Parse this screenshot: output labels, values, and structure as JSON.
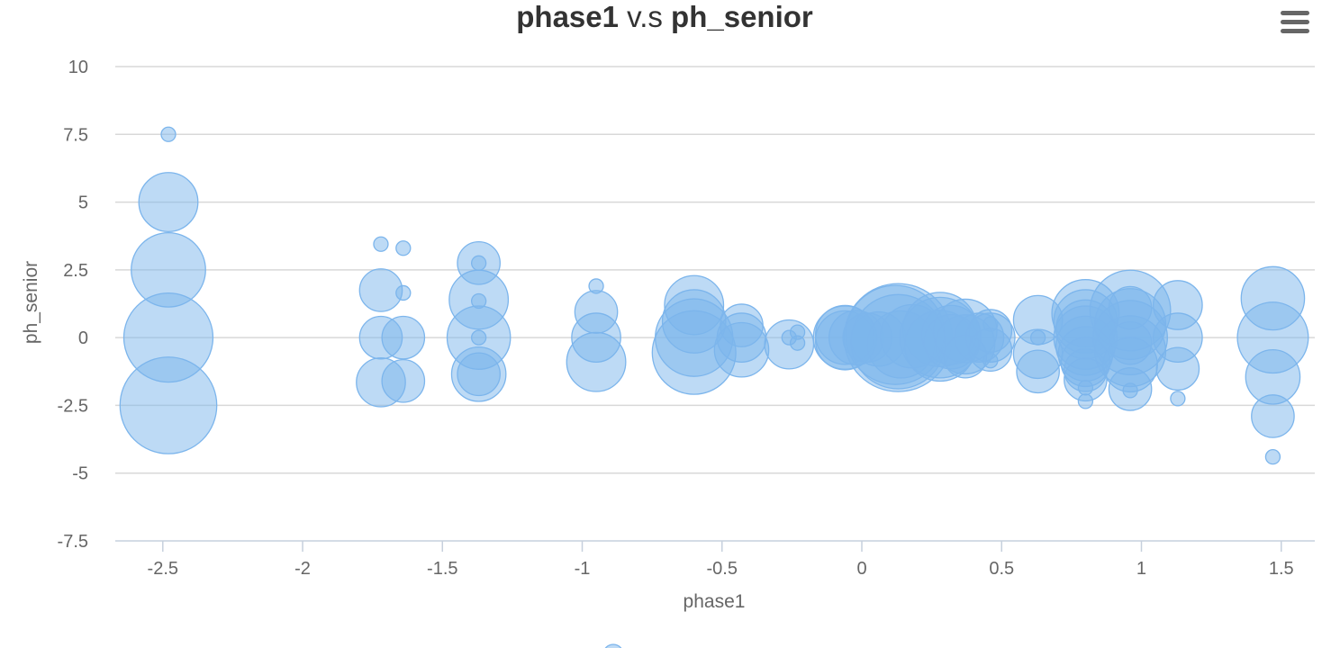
{
  "chart_data": {
    "type": "bubble",
    "title": {
      "part1": "phase1",
      "connector": " v.s ",
      "part2": "ph_senior"
    },
    "xlabel": "phase1",
    "ylabel": "ph_senior",
    "xlim": [
      -2.67,
      1.62
    ],
    "ylim": [
      -7.5,
      10
    ],
    "x_ticks": [
      {
        "value": -2.5,
        "label": "-2.5"
      },
      {
        "value": -2,
        "label": "-2"
      },
      {
        "value": -1.5,
        "label": "-1.5"
      },
      {
        "value": -1,
        "label": "-1"
      },
      {
        "value": -0.5,
        "label": "-0.5"
      },
      {
        "value": 0,
        "label": "0"
      },
      {
        "value": 0.5,
        "label": "0.5"
      },
      {
        "value": 1,
        "label": "1"
      },
      {
        "value": 1.5,
        "label": "1.5"
      }
    ],
    "y_ticks": [
      {
        "value": 10,
        "label": "10"
      },
      {
        "value": 7.5,
        "label": "7.5"
      },
      {
        "value": 5,
        "label": "5"
      },
      {
        "value": 2.5,
        "label": "2.5"
      },
      {
        "value": 0,
        "label": "0"
      },
      {
        "value": -2.5,
        "label": "-2.5"
      },
      {
        "value": -5,
        "label": "-5"
      },
      {
        "value": -7.5,
        "label": "-7.5"
      }
    ],
    "grid": true,
    "legend": {
      "position": "bottom-center"
    },
    "colors": {
      "bubble": "#7cb5ec"
    },
    "points": [
      {
        "x": -2.48,
        "y": 7.5,
        "z": 1
      },
      {
        "x": -2.48,
        "y": 5.0,
        "z": 5
      },
      {
        "x": -2.48,
        "y": 2.5,
        "z": 9
      },
      {
        "x": -2.48,
        "y": 0.0,
        "z": 14
      },
      {
        "x": -2.48,
        "y": -2.5,
        "z": 17
      },
      {
        "x": -1.72,
        "y": 3.45,
        "z": 1
      },
      {
        "x": -1.64,
        "y": 3.3,
        "z": 1
      },
      {
        "x": -1.72,
        "y": 1.75,
        "z": 2
      },
      {
        "x": -1.64,
        "y": 1.65,
        "z": 1
      },
      {
        "x": -1.72,
        "y": 0.0,
        "z": 2
      },
      {
        "x": -1.64,
        "y": 0.0,
        "z": 2
      },
      {
        "x": -1.72,
        "y": -1.65,
        "z": 3
      },
      {
        "x": -1.64,
        "y": -1.6,
        "z": 2
      },
      {
        "x": -1.37,
        "y": 2.75,
        "z": 2
      },
      {
        "x": -1.37,
        "y": 2.75,
        "z": 1
      },
      {
        "x": -1.37,
        "y": 1.4,
        "z": 5
      },
      {
        "x": -1.37,
        "y": 1.35,
        "z": 1
      },
      {
        "x": -1.37,
        "y": 0.0,
        "z": 6
      },
      {
        "x": -1.37,
        "y": 0.0,
        "z": 1
      },
      {
        "x": -1.37,
        "y": -1.35,
        "z": 4
      },
      {
        "x": -1.37,
        "y": -1.35,
        "z": 2
      },
      {
        "x": -0.95,
        "y": 1.9,
        "z": 1
      },
      {
        "x": -0.95,
        "y": 0.95,
        "z": 2
      },
      {
        "x": -0.95,
        "y": 0.0,
        "z": 3
      },
      {
        "x": -0.95,
        "y": -0.9,
        "z": 5
      },
      {
        "x": -0.6,
        "y": 1.2,
        "z": 5
      },
      {
        "x": -0.6,
        "y": 0.6,
        "z": 6
      },
      {
        "x": -0.6,
        "y": 0.0,
        "z": 10
      },
      {
        "x": -0.6,
        "y": -0.55,
        "z": 12
      },
      {
        "x": -0.43,
        "y": 0.45,
        "z": 2
      },
      {
        "x": -0.43,
        "y": 0.0,
        "z": 3
      },
      {
        "x": -0.43,
        "y": -0.45,
        "z": 4
      },
      {
        "x": -0.26,
        "y": -0.25,
        "z": 3
      },
      {
        "x": -0.26,
        "y": 0.0,
        "z": 1
      },
      {
        "x": -0.23,
        "y": 0.2,
        "z": 1
      },
      {
        "x": -0.23,
        "y": -0.2,
        "z": 1
      },
      {
        "x": -0.06,
        "y": 0.1,
        "z": 5
      },
      {
        "x": -0.06,
        "y": 0.0,
        "z": 6
      },
      {
        "x": -0.06,
        "y": -0.1,
        "z": 5
      },
      {
        "x": -0.02,
        "y": 0.0,
        "z": 4
      },
      {
        "x": 0.02,
        "y": 0.0,
        "z": 3
      },
      {
        "x": 0.06,
        "y": -0.05,
        "z": 4
      },
      {
        "x": 0.12,
        "y": 0.1,
        "z": 18
      },
      {
        "x": 0.13,
        "y": 0.0,
        "z": 22
      },
      {
        "x": 0.13,
        "y": -0.15,
        "z": 16
      },
      {
        "x": 0.14,
        "y": -0.25,
        "z": 7
      },
      {
        "x": 0.18,
        "y": 0.05,
        "z": 6
      },
      {
        "x": 0.28,
        "y": 0.3,
        "z": 9
      },
      {
        "x": 0.28,
        "y": 0.0,
        "z": 11
      },
      {
        "x": 0.28,
        "y": -0.3,
        "z": 8
      },
      {
        "x": 0.32,
        "y": 0.1,
        "z": 5
      },
      {
        "x": 0.32,
        "y": -0.15,
        "z": 4
      },
      {
        "x": 0.37,
        "y": 0.25,
        "z": 6
      },
      {
        "x": 0.37,
        "y": -0.25,
        "z": 5
      },
      {
        "x": 0.37,
        "y": -0.7,
        "z": 2
      },
      {
        "x": 0.42,
        "y": 0.0,
        "z": 3
      },
      {
        "x": 0.46,
        "y": 0.5,
        "z": 1
      },
      {
        "x": 0.46,
        "y": 0.25,
        "z": 2
      },
      {
        "x": 0.46,
        "y": 0.0,
        "z": 3
      },
      {
        "x": 0.46,
        "y": -0.45,
        "z": 2
      },
      {
        "x": 0.46,
        "y": -0.85,
        "z": 1
      },
      {
        "x": 0.63,
        "y": 0.65,
        "z": 3
      },
      {
        "x": 0.63,
        "y": 0.0,
        "z": 1
      },
      {
        "x": 0.63,
        "y": -0.6,
        "z": 3
      },
      {
        "x": 0.63,
        "y": -1.25,
        "z": 2
      },
      {
        "x": 0.8,
        "y": 0.9,
        "z": 7
      },
      {
        "x": 0.8,
        "y": 0.6,
        "z": 6
      },
      {
        "x": 0.8,
        "y": 0.3,
        "z": 5
      },
      {
        "x": 0.8,
        "y": 0.0,
        "z": 6
      },
      {
        "x": 0.8,
        "y": -0.3,
        "z": 5
      },
      {
        "x": 0.8,
        "y": -0.6,
        "z": 4
      },
      {
        "x": 0.8,
        "y": -0.9,
        "z": 3
      },
      {
        "x": 0.8,
        "y": -1.2,
        "z": 2
      },
      {
        "x": 0.8,
        "y": -1.55,
        "z": 2
      },
      {
        "x": 0.8,
        "y": -1.85,
        "z": 1
      },
      {
        "x": 0.8,
        "y": -2.35,
        "z": 1
      },
      {
        "x": 0.96,
        "y": 1.0,
        "z": 11
      },
      {
        "x": 0.96,
        "y": 0.5,
        "z": 8
      },
      {
        "x": 0.96,
        "y": 0.0,
        "z": 9
      },
      {
        "x": 0.96,
        "y": -0.5,
        "z": 8
      },
      {
        "x": 0.96,
        "y": -1.0,
        "z": 4
      },
      {
        "x": 0.96,
        "y": 1.1,
        "z": 2
      },
      {
        "x": 0.96,
        "y": -0.2,
        "z": 2
      },
      {
        "x": 0.96,
        "y": -1.9,
        "z": 2
      },
      {
        "x": 0.96,
        "y": -1.95,
        "z": 1
      },
      {
        "x": 1.13,
        "y": 1.2,
        "z": 3
      },
      {
        "x": 1.13,
        "y": 0.0,
        "z": 3
      },
      {
        "x": 1.13,
        "y": -1.15,
        "z": 2
      },
      {
        "x": 1.13,
        "y": -2.25,
        "z": 1
      },
      {
        "x": 1.47,
        "y": 1.45,
        "z": 6
      },
      {
        "x": 1.47,
        "y": 0.0,
        "z": 8
      },
      {
        "x": 1.47,
        "y": -1.45,
        "z": 4
      },
      {
        "x": 1.47,
        "y": -2.9,
        "z": 2
      },
      {
        "x": 1.47,
        "y": -4.4,
        "z": 1
      }
    ]
  },
  "menu": {
    "icon": "hamburger-menu-icon"
  }
}
